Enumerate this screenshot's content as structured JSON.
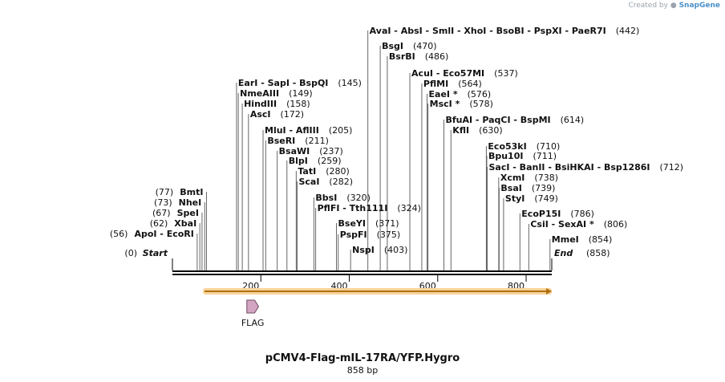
{
  "watermark": {
    "prefix": "Created by",
    "brand": "SnapGene"
  },
  "title": "pCMV4-Flag-mIL-17RA/YFP.Hygro",
  "length_label": "858 bp",
  "sequence_length": 858,
  "ticks": [
    "200",
    "400",
    "600",
    "800"
  ],
  "tick_values": [
    200,
    400,
    600,
    800
  ],
  "feature": {
    "name": "FLAG",
    "color": "#d3a5c3",
    "start": 181,
    "end": 204
  },
  "orf": {
    "start": 80,
    "end": 858,
    "color": "#f0a020"
  },
  "start_marker": {
    "name": "Start",
    "pos": 0,
    "label": "(0)"
  },
  "end_marker": {
    "name": "End",
    "pos": 858,
    "label": "(858)"
  },
  "enzymes": [
    {
      "text": "AvaI   - AbsI   - SmlI   - XhoI   - BsoBI   - PspXI   - PaeR7I",
      "pos": 442,
      "num": "(442)",
      "side": "right"
    },
    {
      "text": "BsgI",
      "pos": 470,
      "num": "(470)",
      "side": "right"
    },
    {
      "text": "BsrBI",
      "pos": 486,
      "num": "(486)",
      "side": "right"
    },
    {
      "text": "AcuI   - Eco57MI",
      "pos": 537,
      "num": "(537)",
      "side": "right"
    },
    {
      "text": "PflMI",
      "pos": 564,
      "num": "(564)",
      "side": "right"
    },
    {
      "text": "EaeI *",
      "pos": 576,
      "num": "(576)",
      "side": "right"
    },
    {
      "text": "MscI *",
      "pos": 578,
      "num": "(578)",
      "side": "right"
    },
    {
      "text": "BfuAI   - PaqCI   - BspMI",
      "pos": 614,
      "num": "(614)",
      "side": "right"
    },
    {
      "text": "KflI",
      "pos": 630,
      "num": "(630)",
      "side": "right"
    },
    {
      "text": "Eco53kI",
      "pos": 710,
      "num": "(710)",
      "side": "right"
    },
    {
      "text": "Bpu10I",
      "pos": 711,
      "num": "(711)",
      "side": "right"
    },
    {
      "text": "SacI   - BanII   - BsiHKAI   - Bsp1286I",
      "pos": 712,
      "num": "(712)",
      "side": "right"
    },
    {
      "text": "XcmI",
      "pos": 738,
      "num": "(738)",
      "side": "right"
    },
    {
      "text": "BsaI",
      "pos": 739,
      "num": "(739)",
      "side": "right"
    },
    {
      "text": "StyI",
      "pos": 749,
      "num": "(749)",
      "side": "right"
    },
    {
      "text": "EcoP15I",
      "pos": 786,
      "num": "(786)",
      "side": "right"
    },
    {
      "text": "CsiI   - SexAI *",
      "pos": 806,
      "num": "(806)",
      "side": "right"
    },
    {
      "text": "MmeI",
      "pos": 854,
      "num": "(854)",
      "side": "right"
    },
    {
      "text": "EarI   - SapI   - BspQI",
      "pos": 145,
      "num": "(145)",
      "side": "right"
    },
    {
      "text": "NmeAIII",
      "pos": 149,
      "num": "(149)",
      "side": "right"
    },
    {
      "text": "HindIII",
      "pos": 158,
      "num": "(158)",
      "side": "right"
    },
    {
      "text": "AscI",
      "pos": 172,
      "num": "(172)",
      "side": "right"
    },
    {
      "text": "MluI   - AflIII",
      "pos": 205,
      "num": "(205)",
      "side": "right"
    },
    {
      "text": "BseRI",
      "pos": 211,
      "num": "(211)",
      "side": "right"
    },
    {
      "text": "BsaWI",
      "pos": 237,
      "num": "(237)",
      "side": "right"
    },
    {
      "text": "BlpI",
      "pos": 259,
      "num": "(259)",
      "side": "right"
    },
    {
      "text": "TatI",
      "pos": 280,
      "num": "(280)",
      "side": "right"
    },
    {
      "text": "ScaI",
      "pos": 282,
      "num": "(282)",
      "side": "right"
    },
    {
      "text": "BbsI",
      "pos": 320,
      "num": "(320)",
      "side": "right"
    },
    {
      "text": "PflFI   - Tth111I",
      "pos": 324,
      "num": "(324)",
      "side": "right"
    },
    {
      "text": "BseYI",
      "pos": 371,
      "num": "(371)",
      "side": "right"
    },
    {
      "text": "PspFI",
      "pos": 375,
      "num": "(375)",
      "side": "right"
    },
    {
      "text": "NspI",
      "pos": 403,
      "num": "(403)",
      "side": "right"
    },
    {
      "text": "BmtI",
      "pos": 77,
      "num": "(77)",
      "side": "left"
    },
    {
      "text": "NheI",
      "pos": 73,
      "num": "(73)",
      "side": "left"
    },
    {
      "text": "SpeI",
      "pos": 67,
      "num": "(67)",
      "side": "left"
    },
    {
      "text": "XbaI",
      "pos": 62,
      "num": "(62)",
      "side": "left"
    },
    {
      "text": "ApoI   - EcoRI",
      "pos": 56,
      "num": "(56)",
      "side": "left"
    }
  ]
}
